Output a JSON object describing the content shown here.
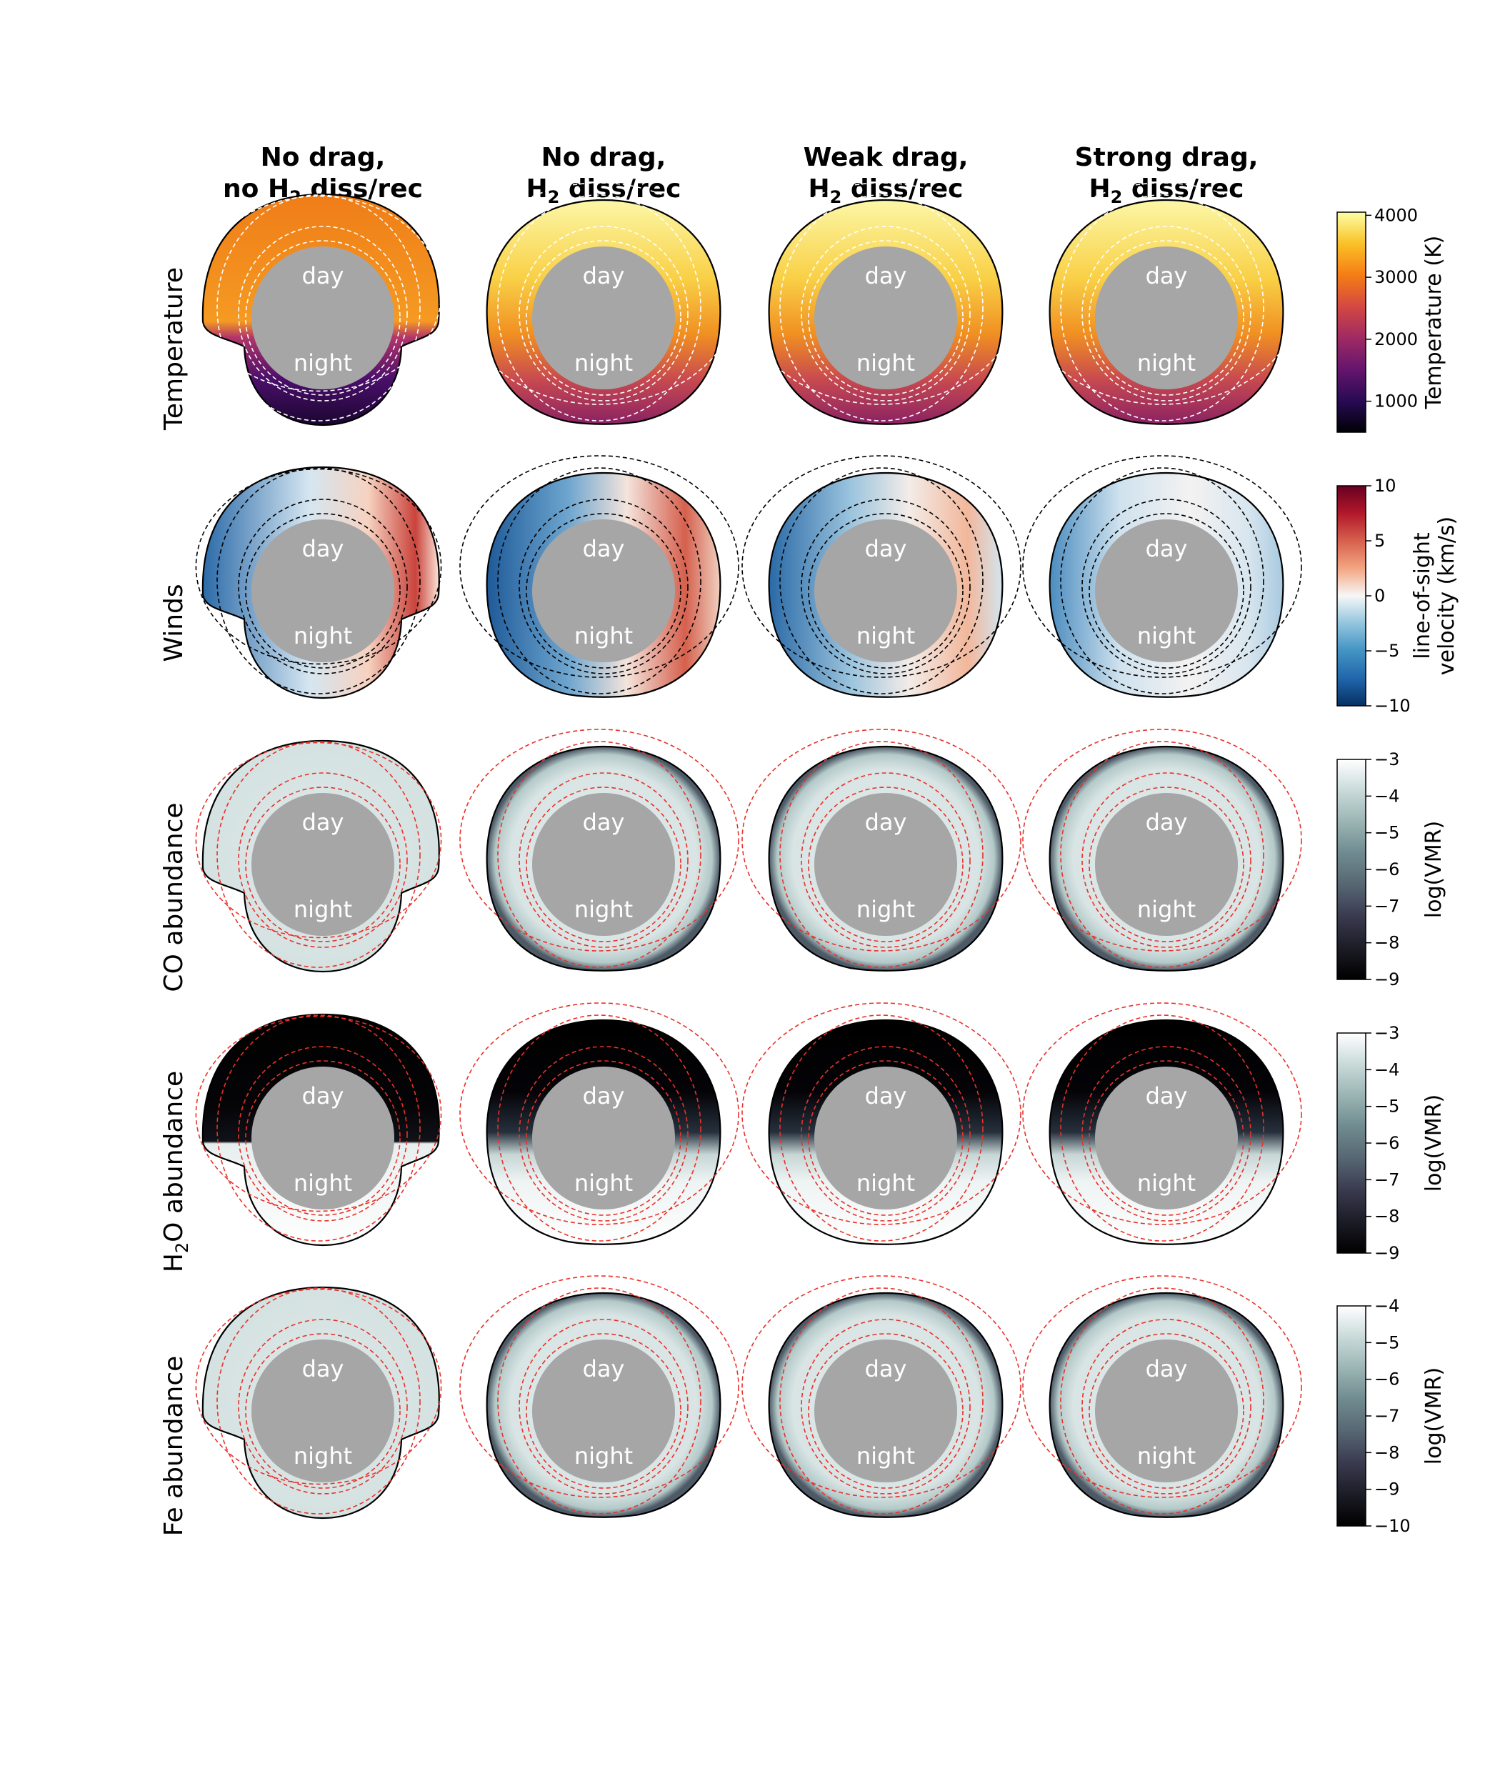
{
  "columns": [
    {
      "line1": "No drag,",
      "line2_pre": "no H",
      "line2_sub": "2",
      "line2_post": " diss/rec"
    },
    {
      "line1": "No drag,",
      "line2_pre": "H",
      "line2_sub": "2",
      "line2_post": " diss/rec"
    },
    {
      "line1": "Weak drag,",
      "line2_pre": "H",
      "line2_sub": "2",
      "line2_post": " diss/rec"
    },
    {
      "line1": "Strong drag,",
      "line2_pre": "H",
      "line2_sub": "2",
      "line2_post": " diss/rec"
    }
  ],
  "rows": [
    {
      "label_pre": "Temperature",
      "label_sub": "",
      "label_post": "",
      "colormap": "inferno",
      "contour_color": "#ffffff",
      "colorbar": {
        "label_lines": [
          "Temperature (K)"
        ],
        "ticks": [
          "1000",
          "2000",
          "3000",
          "4000"
        ],
        "tick_values": [
          1000,
          2000,
          3000,
          4000
        ],
        "range": [
          500,
          4050
        ]
      }
    },
    {
      "label_pre": "Winds",
      "label_sub": "",
      "label_post": "",
      "colormap": "rdbu",
      "contour_color": "#000000",
      "colorbar": {
        "label_lines": [
          "line-of-sight",
          "velocity (km/s)"
        ],
        "ticks": [
          "−10",
          "−5",
          "0",
          "5",
          "10"
        ],
        "tick_values": [
          -10,
          -5,
          0,
          5,
          10
        ],
        "range": [
          -10,
          10
        ]
      }
    },
    {
      "label_pre": "CO abundance",
      "label_sub": "",
      "label_post": "",
      "colormap": "bone",
      "contour_color": "#e8322a",
      "colorbar": {
        "label_lines": [
          "log(VMR)"
        ],
        "ticks": [
          "−9",
          "−8",
          "−7",
          "−6",
          "−5",
          "−4",
          "−3"
        ],
        "tick_values": [
          -9,
          -8,
          -7,
          -6,
          -5,
          -4,
          -3
        ],
        "range": [
          -9,
          -3
        ]
      }
    },
    {
      "label_pre": "H",
      "label_sub": "2",
      "label_post": "O abundance",
      "colormap": "bone",
      "contour_color": "#e8322a",
      "colorbar": {
        "label_lines": [
          "log(VMR)"
        ],
        "ticks": [
          "−9",
          "−8",
          "−7",
          "−6",
          "−5",
          "−4",
          "−3"
        ],
        "tick_values": [
          -9,
          -8,
          -7,
          -6,
          -5,
          -4,
          -3
        ],
        "range": [
          -9,
          -3
        ]
      }
    },
    {
      "label_pre": "Fe abundance",
      "label_sub": "",
      "label_post": "",
      "colormap": "bone",
      "contour_color": "#e8322a",
      "colorbar": {
        "label_lines": [
          "log(VMR)"
        ],
        "ticks": [
          "−10",
          "−9",
          "−8",
          "−7",
          "−6",
          "−5",
          "−4"
        ],
        "tick_values": [
          -10,
          -9,
          -8,
          -7,
          -6,
          -5,
          -4
        ],
        "range": [
          -10,
          -4
        ]
      }
    }
  ],
  "panel_text": {
    "day": "day",
    "night": "night"
  },
  "chart_data": {
    "type": "heatmap",
    "description_axes": "polar cross-sections (day side up, night side down) for each model",
    "columns": [
      "No drag, no H2 diss/rec",
      "No drag, H2 diss/rec",
      "Weak drag, H2 diss/rec",
      "Strong drag, H2 diss/rec"
    ],
    "rows": [
      "Temperature",
      "Winds",
      "CO abundance",
      "H2O abundance",
      "Fe abundance"
    ],
    "colorbars": [
      {
        "row": "Temperature",
        "label": "Temperature (K)",
        "range": [
          500,
          4050
        ],
        "ticks": [
          1000,
          2000,
          3000,
          4000
        ]
      },
      {
        "row": "Winds",
        "label": "line-of-sight velocity (km/s)",
        "range": [
          -10,
          10
        ],
        "ticks": [
          -10,
          -5,
          0,
          5,
          10
        ]
      },
      {
        "row": "CO abundance",
        "label": "log(VMR)",
        "range": [
          -9,
          -3
        ],
        "ticks": [
          -9,
          -8,
          -7,
          -6,
          -5,
          -4,
          -3
        ]
      },
      {
        "row": "H2O abundance",
        "label": "log(VMR)",
        "range": [
          -9,
          -3
        ],
        "ticks": [
          -9,
          -8,
          -7,
          -6,
          -5,
          -4,
          -3
        ]
      },
      {
        "row": "Fe abundance",
        "label": "log(VMR)",
        "range": [
          -10,
          -4
        ],
        "ticks": [
          -10,
          -9,
          -8,
          -7,
          -6,
          -5,
          -4
        ]
      }
    ]
  }
}
